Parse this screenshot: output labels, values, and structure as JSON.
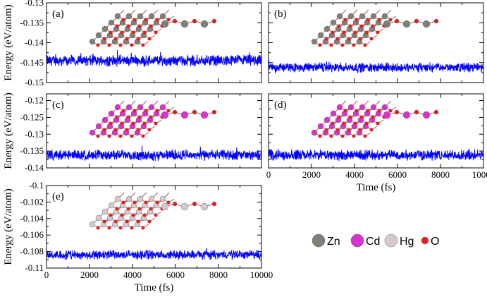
{
  "chart_data": [
    {
      "panel": "(a)",
      "type": "line",
      "ylabel": "Energy (eV/atom)",
      "xlabel": "",
      "xlim": [
        0,
        10000
      ],
      "ylim": [
        -0.15,
        -0.13
      ],
      "yticks": [
        -0.13,
        -0.135,
        -0.14,
        -0.145,
        -0.15
      ],
      "ytick_labels": [
        "-0.13",
        "-0.135",
        "-0.14",
        "-0.145",
        "-0.15"
      ],
      "xtick_labels": [],
      "series": [
        {
          "mean": -0.1445,
          "amplitude": 0.0018,
          "color": "#0000ff",
          "start": -0.1435
        }
      ],
      "structure_atoms": [
        "Zn",
        "O"
      ]
    },
    {
      "panel": "(b)",
      "type": "line",
      "ylabel": "",
      "xlabel": "",
      "xlim": [
        0,
        10000
      ],
      "ylim": [
        -0.15,
        -0.13
      ],
      "yticks": [
        -0.13,
        -0.135,
        -0.14,
        -0.145,
        -0.15
      ],
      "ytick_labels": [],
      "xtick_labels": [],
      "series": [
        {
          "mean": -0.1462,
          "amplitude": 0.0015,
          "color": "#0000ff",
          "start": -0.1445
        }
      ],
      "structure_atoms": [
        "Zn",
        "O"
      ]
    },
    {
      "panel": "(c)",
      "type": "line",
      "ylabel": "Energy (eV/atom)",
      "xlabel": "",
      "xlim": [
        0,
        10000
      ],
      "ylim": [
        -0.14,
        -0.118
      ],
      "yticks": [
        -0.12,
        -0.125,
        -0.13,
        -0.135,
        -0.14
      ],
      "ytick_labels": [
        "-0.12",
        "-0.125",
        "-0.13",
        "-0.135",
        "-0.14"
      ],
      "xtick_labels": [],
      "series": [
        {
          "mean": -0.1362,
          "amplitude": 0.002,
          "color": "#0000ff",
          "start": -0.135
        }
      ],
      "structure_atoms": [
        "Cd",
        "O"
      ]
    },
    {
      "panel": "(d)",
      "type": "line",
      "ylabel": "",
      "xlabel": "Time (fs)",
      "xlim": [
        0,
        10000
      ],
      "ylim": [
        -0.14,
        -0.118
      ],
      "yticks": [
        -0.12,
        -0.125,
        -0.13,
        -0.135,
        -0.14
      ],
      "xticks": [
        0,
        2000,
        4000,
        6000,
        8000,
        10000
      ],
      "ytick_labels": [],
      "xtick_labels": [
        "0",
        "2000",
        "4000",
        "6000",
        "8000",
        "10000"
      ],
      "series": [
        {
          "mean": -0.1362,
          "amplitude": 0.002,
          "color": "#0000ff",
          "start": -0.135
        }
      ],
      "structure_atoms": [
        "Cd",
        "O"
      ]
    },
    {
      "panel": "(e)",
      "type": "line",
      "ylabel": "Energy (eV/atom)",
      "xlabel": "Time (fs)",
      "xlim": [
        0,
        10000
      ],
      "ylim": [
        -0.11,
        -0.1
      ],
      "yticks": [
        -0.1,
        -0.102,
        -0.104,
        -0.106,
        -0.108,
        -0.11
      ],
      "xticks": [
        0,
        2000,
        4000,
        6000,
        8000,
        10000
      ],
      "ytick_labels": [
        "-0.1",
        "-0.102",
        "-0.104",
        "-0.106",
        "-0.108",
        "-0.11"
      ],
      "xtick_labels": [
        "0",
        "2000",
        "4000",
        "6000",
        "8000",
        "10000"
      ],
      "series": [
        {
          "mean": -0.1084,
          "amplitude": 0.0007,
          "color": "#0000ff",
          "start": -0.1083
        }
      ],
      "structure_atoms": [
        "Hg",
        "O"
      ]
    }
  ],
  "legend": {
    "items": [
      {
        "label": "Zn",
        "color": "#808078"
      },
      {
        "label": "Cd",
        "color": "#d833cc"
      },
      {
        "label": "Hg",
        "color": "#d5c8d0"
      },
      {
        "label": "O",
        "color": "#e02020"
      }
    ]
  }
}
